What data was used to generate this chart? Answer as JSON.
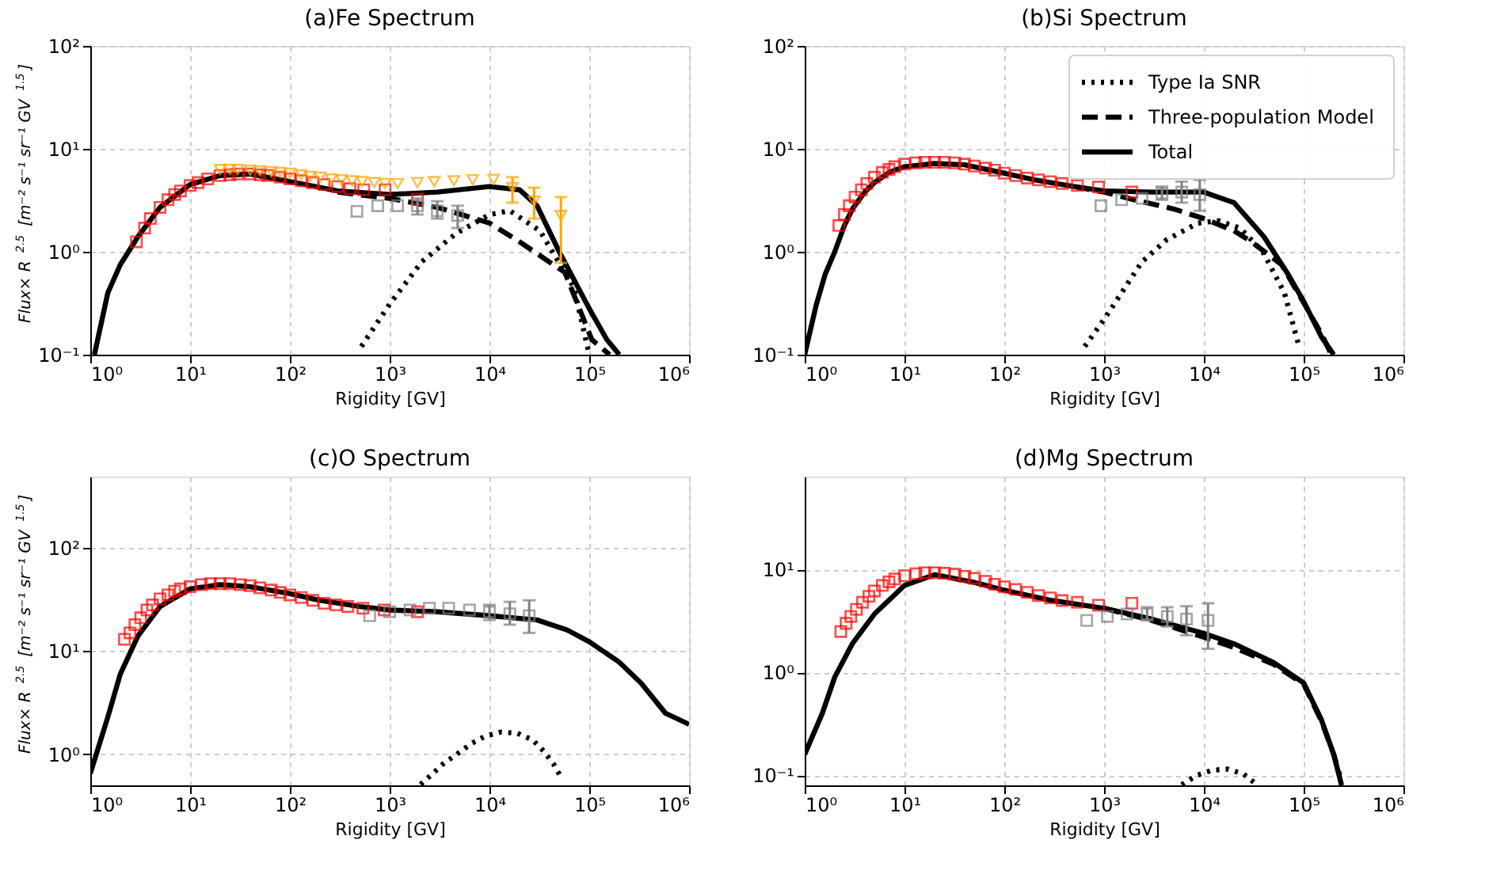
{
  "chart_data": [
    {
      "type": "line",
      "title": "(a)Fe Spectrum",
      "xlabel": "Rigidity [GV]",
      "ylabel": "Flux× R$^{2.5}$ [m⁻² s⁻¹ sr⁻¹ GV$^{1.5}$]",
      "log": "xy",
      "grid": true,
      "xlim": [
        1,
        1000000
      ],
      "ylim": [
        0.1,
        100
      ],
      "xticks": [
        {
          "value": 1,
          "label": "10⁰"
        },
        {
          "value": 10,
          "label": "10¹"
        },
        {
          "value": 100,
          "label": "10²"
        },
        {
          "value": 1000,
          "label": "10³"
        },
        {
          "value": 10000,
          "label": "10⁴"
        },
        {
          "value": 100000,
          "label": "10⁵"
        },
        {
          "value": 1000000,
          "label": "10⁶"
        }
      ],
      "yticks": [
        {
          "value": 0.1,
          "label": "10⁻¹"
        },
        {
          "value": 1,
          "label": "10⁰"
        },
        {
          "value": 10,
          "label": "10¹"
        },
        {
          "value": 100,
          "label": "10²"
        }
      ],
      "series": [
        {
          "color": "#000000",
          "line_style": "dotted",
          "x": [
            520,
            1000,
            2100,
            4600,
            10000,
            16000,
            32000,
            70000,
            100000
          ],
          "values": [
            0.12,
            0.31,
            0.8,
            1.5,
            2.3,
            2.5,
            1.6,
            0.45,
            0.1
          ]
        },
        {
          "color": "#000000",
          "line_style": "dashed",
          "x": [
            300,
            1000,
            3000,
            10000,
            20000,
            57000,
            106000,
            160000
          ],
          "values": [
            3.8,
            3.3,
            2.7,
            1.9,
            1.25,
            0.63,
            0.14,
            0.1
          ]
        },
        {
          "color": "#000000",
          "line_style": "solid",
          "x": [
            1.1,
            1.5,
            2,
            3,
            5,
            10,
            20,
            40,
            100,
            300,
            1000,
            3000,
            10000,
            20000,
            30000,
            50000,
            100000,
            150000,
            200000
          ],
          "values": [
            0.1,
            0.4,
            0.75,
            1.4,
            2.7,
            4.5,
            5.5,
            5.7,
            4.8,
            3.9,
            3.6,
            3.8,
            4.3,
            4.0,
            2.8,
            1.0,
            0.28,
            0.14,
            0.1
          ]
        },
        {
          "type": "scatter",
          "marker": "square",
          "color": "#ff0000",
          "x": [
            2.9,
            3.5,
            4,
            5,
            6,
            7,
            8,
            10,
            12,
            15,
            20,
            25,
            30,
            40,
            50,
            60,
            80,
            100,
            130,
            170,
            220,
            300,
            400,
            550,
            900,
            1900
          ],
          "values": [
            1.25,
            1.7,
            2.1,
            2.7,
            3.2,
            3.6,
            3.9,
            4.4,
            4.7,
            5.1,
            5.5,
            5.6,
            5.7,
            5.7,
            5.6,
            5.5,
            5.3,
            5.1,
            4.9,
            4.7,
            4.5,
            4.3,
            4.1,
            4.0,
            4.0,
            3.25
          ]
        },
        {
          "type": "scatter",
          "marker": "square",
          "color": "#808080",
          "x": [
            470,
            760,
            1200,
            1900,
            3000,
            4800
          ],
          "values": [
            2.47,
            2.8,
            2.8,
            2.8,
            2.5,
            2.25
          ],
          "errors": [
            null,
            null,
            null,
            [
              2.3,
              3.3
            ],
            [
              2.1,
              3.1
            ],
            [
              1.7,
              2.8
            ]
          ]
        },
        {
          "type": "scatter",
          "marker": "triangle",
          "color": "#ffa500",
          "x": [
            20,
            25,
            30,
            40,
            50,
            65,
            80,
            100,
            130,
            160,
            200,
            260,
            330,
            420,
            530,
            700,
            900,
            1200,
            1900,
            2800,
            4400,
            6800,
            11000,
            17000,
            28000,
            52000
          ],
          "values": [
            6.3,
            6.3,
            6.3,
            6.2,
            6.1,
            6.0,
            5.9,
            5.8,
            5.6,
            5.4,
            5.3,
            5.1,
            5.0,
            4.9,
            4.8,
            4.7,
            4.6,
            4.6,
            4.7,
            4.8,
            4.9,
            5.0,
            5.05,
            4.2,
            3.1,
            2.25
          ],
          "errors": [
            null,
            null,
            null,
            null,
            null,
            null,
            null,
            null,
            null,
            null,
            null,
            null,
            null,
            null,
            null,
            null,
            null,
            null,
            null,
            null,
            null,
            null,
            null,
            [
              3.0,
              5.3
            ],
            [
              2.1,
              4.2
            ],
            [
              0.78,
              3.4
            ]
          ]
        }
      ]
    },
    {
      "type": "line",
      "title": "(b)Si Spectrum",
      "xlabel": "Rigidity [GV]",
      "log": "xy",
      "grid": true,
      "legend": "top right",
      "xlim": [
        1,
        1000000
      ],
      "ylim": [
        0.1,
        100
      ],
      "xticks": [
        {
          "value": 1,
          "label": "10⁰"
        },
        {
          "value": 10,
          "label": "10¹"
        },
        {
          "value": 100,
          "label": "10²"
        },
        {
          "value": 1000,
          "label": "10³"
        },
        {
          "value": 10000,
          "label": "10⁴"
        },
        {
          "value": 100000,
          "label": "10⁵"
        },
        {
          "value": 1000000,
          "label": "10⁶"
        }
      ],
      "yticks": [
        {
          "value": 0.1,
          "label": "10⁻¹"
        },
        {
          "value": 1,
          "label": "10⁰"
        },
        {
          "value": 10,
          "label": "10¹"
        },
        {
          "value": 100,
          "label": "10²"
        }
      ],
      "series": [
        {
          "name": "Type Ia SNR",
          "color": "#000000",
          "line_style": "dotted",
          "x": [
            640,
            1000,
            1500,
            2400,
            4200,
            8700,
            14000,
            23000,
            39000,
            64000,
            90000
          ],
          "values": [
            0.12,
            0.22,
            0.4,
            0.8,
            1.3,
            1.9,
            2.0,
            1.7,
            1.0,
            0.4,
            0.12
          ]
        },
        {
          "name": "Three-population Model",
          "color": "#000000",
          "line_style": "dashed",
          "x": [
            500,
            1000,
            2000,
            5000,
            10000,
            20000,
            30000,
            60000,
            100000,
            150000,
            190000
          ],
          "values": [
            4.3,
            3.8,
            3.2,
            2.6,
            2.1,
            1.6,
            1.25,
            0.75,
            0.32,
            0.16,
            0.1
          ]
        },
        {
          "name": "Total",
          "color": "#000000",
          "line_style": "solid",
          "x": [
            1,
            1.3,
            1.6,
            2,
            2.5,
            3,
            4,
            5,
            7,
            10,
            20,
            40,
            100,
            200,
            500,
            1000,
            3000,
            10000,
            20000,
            40000,
            70000,
            100000,
            150000,
            200000
          ],
          "values": [
            0.1,
            0.3,
            0.6,
            1.0,
            1.8,
            2.6,
            3.8,
            4.7,
            5.9,
            6.7,
            7.2,
            7.0,
            5.8,
            5.0,
            4.3,
            3.9,
            3.8,
            3.8,
            3.0,
            1.4,
            0.6,
            0.33,
            0.15,
            0.1
          ]
        },
        {
          "type": "scatter",
          "marker": "square",
          "color": "#ff0000",
          "x": [
            2.2,
            2.5,
            2.8,
            3.2,
            3.7,
            4.2,
            5,
            6,
            7,
            8,
            10,
            13,
            16,
            20,
            25,
            32,
            40,
            50,
            65,
            80,
            100,
            130,
            170,
            220,
            290,
            380,
            540,
            880,
            1900
          ],
          "values": [
            1.8,
            2.3,
            2.8,
            3.4,
            4.0,
            4.6,
            5.3,
            5.9,
            6.3,
            6.7,
            7.1,
            7.3,
            7.4,
            7.4,
            7.4,
            7.3,
            7.1,
            6.8,
            6.5,
            6.2,
            5.8,
            5.5,
            5.2,
            5.0,
            4.8,
            4.6,
            4.4,
            4.25,
            3.8
          ]
        },
        {
          "type": "scatter",
          "marker": "square",
          "color": "#808080",
          "x": [
            930,
            1500,
            2400,
            3800,
            6000,
            9100
          ],
          "values": [
            2.8,
            3.2,
            3.3,
            3.7,
            3.8,
            3.6
          ],
          "errors": [
            null,
            null,
            null,
            [
              3.2,
              4.3
            ],
            [
              3.0,
              4.8
            ],
            [
              2.5,
              5.0
            ]
          ]
        }
      ]
    },
    {
      "type": "line",
      "title": "(c)O Spectrum",
      "xlabel": "Rigidity [GV]",
      "ylabel": "Flux× R$^{2.5}$ [m⁻² s⁻¹ sr⁻¹ GV$^{1.5}$]",
      "log": "xy",
      "grid": true,
      "xlim": [
        1,
        1000000
      ],
      "ylim": [
        0.5,
        490
      ],
      "xticks": [
        {
          "value": 1,
          "label": "10⁰"
        },
        {
          "value": 10,
          "label": "10¹"
        },
        {
          "value": 100,
          "label": "10²"
        },
        {
          "value": 1000,
          "label": "10³"
        },
        {
          "value": 10000,
          "label": "10⁴"
        },
        {
          "value": 100000,
          "label": "10⁵"
        },
        {
          "value": 1000000,
          "label": "10⁶"
        }
      ],
      "yticks": [
        {
          "value": 1,
          "label": "10⁰"
        },
        {
          "value": 10,
          "label": "10¹"
        },
        {
          "value": 100,
          "label": "10²"
        }
      ],
      "series": [
        {
          "color": "#000000",
          "line_style": "dotted",
          "x": [
            2040,
            2700,
            3500,
            4700,
            6600,
            9100,
            13000,
            19000,
            27000,
            35000,
            44000,
            52000
          ],
          "values": [
            0.51,
            0.65,
            0.82,
            1.0,
            1.27,
            1.5,
            1.64,
            1.6,
            1.38,
            1.07,
            0.8,
            0.6
          ]
        },
        {
          "color": "#000000",
          "line_style": "solid",
          "x": [
            1,
            1.5,
            2,
            3,
            5,
            10,
            20,
            40,
            100,
            200,
            500,
            1000,
            3000,
            10000,
            30000,
            60000,
            100000,
            200000,
            330000,
            580000,
            1000000
          ],
          "values": [
            0.65,
            2.3,
            6,
            14,
            27,
            40,
            44,
            42,
            36,
            31,
            27,
            25,
            24,
            22,
            20,
            16,
            12.3,
            7.8,
            4.9,
            2.5,
            1.95
          ]
        },
        {
          "type": "scatter",
          "marker": "square",
          "color": "#ff0000",
          "x": [
            2.2,
            2.5,
            2.8,
            3.2,
            3.7,
            4.2,
            5,
            6,
            7,
            8,
            10,
            13,
            16,
            20,
            25,
            32,
            40,
            50,
            65,
            80,
            100,
            130,
            170,
            220,
            290,
            380,
            540,
            880,
            1900
          ],
          "values": [
            13,
            15,
            18,
            21,
            25,
            28,
            32,
            35,
            38,
            40,
            42,
            44,
            45,
            45,
            45,
            44,
            43,
            41,
            39,
            37,
            35,
            33,
            31,
            29,
            28,
            27,
            26,
            25,
            24
          ]
        },
        {
          "type": "scatter",
          "marker": "square",
          "color": "#808080",
          "x": [
            630,
            1000,
            1600,
            2500,
            3900,
            6300,
            10000,
            16000,
            25000
          ],
          "values": [
            22,
            24,
            25,
            26,
            26,
            25,
            24,
            23,
            22
          ],
          "errors": [
            null,
            null,
            null,
            null,
            null,
            null,
            [
              20,
              28
            ],
            [
              18,
              30
            ],
            [
              15,
              31
            ]
          ]
        }
      ]
    },
    {
      "type": "line",
      "title": "(d)Mg Spectrum",
      "xlabel": "Rigidity [GV]",
      "log": "xy",
      "grid": true,
      "xlim": [
        1,
        1000000
      ],
      "ylim": [
        0.08,
        80
      ],
      "xticks": [
        {
          "value": 1,
          "label": "10⁰"
        },
        {
          "value": 10,
          "label": "10¹"
        },
        {
          "value": 100,
          "label": "10²"
        },
        {
          "value": 1000,
          "label": "10³"
        },
        {
          "value": 10000,
          "label": "10⁴"
        },
        {
          "value": 100000,
          "label": "10⁵"
        },
        {
          "value": 1000000,
          "label": "10⁶"
        }
      ],
      "yticks": [
        {
          "value": 0.1,
          "label": "10⁻¹"
        },
        {
          "value": 1,
          "label": "10⁰"
        },
        {
          "value": 10,
          "label": "10¹"
        }
      ],
      "series": [
        {
          "color": "#000000",
          "line_style": "dotted",
          "x": [
            6000,
            8500,
            12000,
            17500,
            25000,
            34000
          ],
          "values": [
            0.081,
            0.1,
            0.112,
            0.115,
            0.103,
            0.081
          ]
        },
        {
          "color": "#000000",
          "line_style": "dashed",
          "x": [
            1000,
            3000,
            10000,
            20000,
            50000,
            100000,
            150000,
            200000,
            230000
          ],
          "values": [
            4.2,
            3.2,
            2.2,
            1.75,
            1.2,
            0.77,
            0.34,
            0.16,
            0.1
          ]
        },
        {
          "color": "#000000",
          "line_style": "solid",
          "x": [
            1,
            1.5,
            2,
            3,
            5,
            10,
            20,
            50,
            100,
            300,
            1000,
            3000,
            10000,
            20000,
            50000,
            100000,
            150000,
            200000,
            240000
          ],
          "values": [
            0.16,
            0.4,
            0.9,
            1.9,
            3.7,
            7.0,
            8.9,
            7.5,
            6.3,
            5.0,
            4.2,
            3.3,
            2.4,
            1.9,
            1.25,
            0.79,
            0.35,
            0.16,
            0.08
          ]
        },
        {
          "type": "scatter",
          "marker": "square",
          "color": "#ff0000",
          "x": [
            2.3,
            2.6,
            2.9,
            3.3,
            3.8,
            4.4,
            5,
            6,
            7,
            8,
            10,
            13,
            16,
            20,
            25,
            32,
            40,
            50,
            65,
            80,
            100,
            130,
            170,
            220,
            290,
            380,
            540,
            880,
            1900
          ],
          "values": [
            2.5,
            3.0,
            3.5,
            4.1,
            4.8,
            5.5,
            6.2,
            7.0,
            7.6,
            8.1,
            8.7,
            9.1,
            9.3,
            9.3,
            9.2,
            9.0,
            8.6,
            8.2,
            7.7,
            7.2,
            6.8,
            6.4,
            6.0,
            5.6,
            5.3,
            5.0,
            4.8,
            4.5,
            4.7
          ]
        },
        {
          "type": "scatter",
          "marker": "square",
          "color": "#808080",
          "x": [
            670,
            1080,
            1700,
            2700,
            4300,
            6700,
            11000
          ],
          "values": [
            3.2,
            3.5,
            3.7,
            3.7,
            3.5,
            3.3,
            3.2
          ],
          "errors": [
            null,
            null,
            null,
            [
              3.2,
              4.3
            ],
            [
              2.8,
              4.3
            ],
            [
              2.3,
              4.4
            ],
            [
              1.7,
              4.7
            ]
          ]
        }
      ]
    }
  ]
}
